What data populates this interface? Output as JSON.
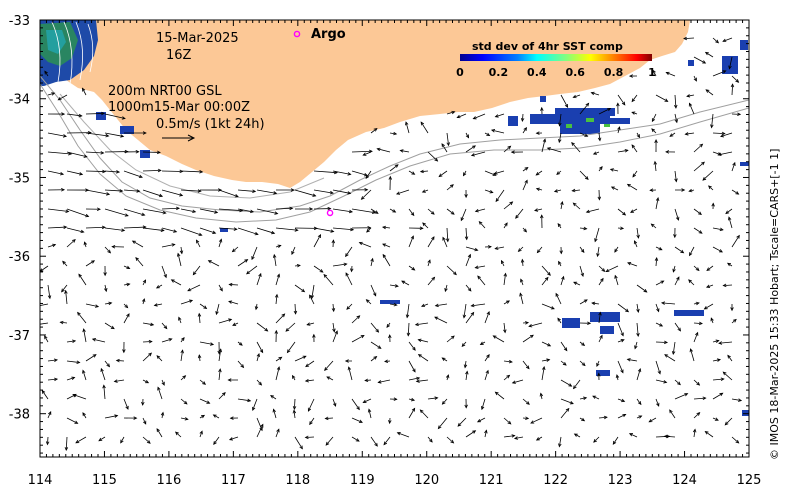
{
  "map": {
    "date": "15-Mar-2025",
    "hour": "16Z",
    "depth_line1": "200m  NRT00 GSL",
    "depth_line2": "1000m15-Mar 00:00Z",
    "scale_label": "0.5m/s (1kt 24h)",
    "argo_label": "Argo",
    "credit": "© IMOS 18-Mar-2025 15:33 Hobart; Tscale=CARS+[-1 1]"
  },
  "colorbar": {
    "title": "std dev of 4hr SST comp",
    "ticks": [
      "0",
      "0.2",
      "0.4",
      "0.6",
      "0.8",
      "1"
    ],
    "colors": [
      "#00008f",
      "#0000ff",
      "#0080ff",
      "#00ffff",
      "#80ff80",
      "#ffff00",
      "#ff8000",
      "#ff0000",
      "#800000"
    ]
  },
  "axes": {
    "x_ticks": [
      "114",
      "115",
      "116",
      "117",
      "118",
      "119",
      "120",
      "121",
      "122",
      "123",
      "124",
      "125"
    ],
    "y_ticks": [
      "-33",
      "-34",
      "-35",
      "-36",
      "-37",
      "-38"
    ],
    "lon_range": [
      114,
      125
    ],
    "lat_range": [
      -38.55,
      -33
    ]
  },
  "colors": {
    "land": "#fcc896",
    "ocean": "#ffffff",
    "argo": "#ff00ff",
    "contour": "#a0a0a0",
    "sst_patch": "#1a3fb0"
  },
  "argo_floats": [
    {
      "lon": 118.5,
      "lat": -35.45
    }
  ]
}
